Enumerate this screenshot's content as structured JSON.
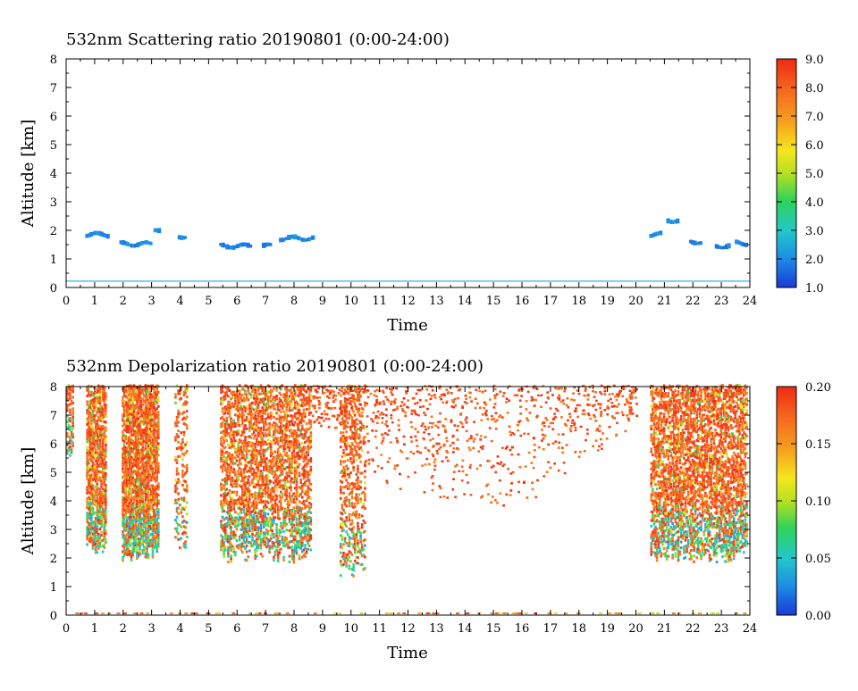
{
  "chart_data": [
    {
      "type": "heatmap",
      "title": "532nm Scattering ratio  20190801 (0:00-24:00)",
      "xlabel": "Time",
      "ylabel": "Altitude [km]",
      "xlim": [
        0,
        24
      ],
      "ylim": [
        0,
        8
      ],
      "x_ticks": [
        "0",
        "1",
        "2",
        "3",
        "4",
        "5",
        "6",
        "7",
        "8",
        "9",
        "10",
        "11",
        "12",
        "13",
        "14",
        "15",
        "16",
        "17",
        "18",
        "19",
        "20",
        "21",
        "22",
        "23",
        "24"
      ],
      "y_ticks": [
        "0",
        "1",
        "2",
        "3",
        "4",
        "5",
        "6",
        "7",
        "8"
      ],
      "colorbar": {
        "range": [
          1.0,
          9.0
        ],
        "ticks": [
          "1.0",
          "2.0",
          "3.0",
          "4.0",
          "5.0",
          "6.0",
          "7.0",
          "8.0",
          "9.0"
        ]
      },
      "features": [
        {
          "t0": 0.7,
          "t1": 1.5,
          "alt": 1.85,
          "value": 1.8
        },
        {
          "t0": 1.9,
          "t1": 3.0,
          "alt": 1.52,
          "value": 1.7
        },
        {
          "t0": 3.1,
          "t1": 3.3,
          "alt": 2.05,
          "value": 1.9
        },
        {
          "t0": 3.95,
          "t1": 4.2,
          "alt": 1.8,
          "value": 1.7
        },
        {
          "t0": 5.4,
          "t1": 6.5,
          "alt": 1.45,
          "value": 1.6
        },
        {
          "t0": 6.9,
          "t1": 7.2,
          "alt": 1.45,
          "value": 1.6
        },
        {
          "t0": 7.5,
          "t1": 8.7,
          "alt": 1.72,
          "value": 1.8
        },
        {
          "t0": 20.5,
          "t1": 20.9,
          "alt": 1.85,
          "value": 1.8
        },
        {
          "t0": 21.1,
          "t1": 21.5,
          "alt": 2.35,
          "value": 1.9
        },
        {
          "t0": 21.9,
          "t1": 22.3,
          "alt": 1.6,
          "value": 1.6
        },
        {
          "t0": 22.8,
          "t1": 23.3,
          "alt": 1.45,
          "value": 1.6
        },
        {
          "t0": 23.5,
          "t1": 23.9,
          "alt": 1.55,
          "value": 1.6
        }
      ],
      "surface_line": {
        "alt": 0.22,
        "value": 2.5
      }
    },
    {
      "type": "heatmap",
      "title": "532nm Depolarization ratio  20190801 (0:00-24:00)",
      "xlabel": "Time",
      "ylabel": "Altitude [km]",
      "xlim": [
        0,
        24
      ],
      "ylim": [
        0,
        8
      ],
      "x_ticks": [
        "0",
        "1",
        "2",
        "3",
        "4",
        "5",
        "6",
        "7",
        "8",
        "9",
        "10",
        "11",
        "12",
        "13",
        "14",
        "15",
        "16",
        "17",
        "18",
        "19",
        "20",
        "21",
        "22",
        "23",
        "24"
      ],
      "y_ticks": [
        "0",
        "1",
        "2",
        "3",
        "4",
        "5",
        "6",
        "7",
        "8"
      ],
      "colorbar": {
        "range": [
          0.0,
          0.2
        ],
        "ticks": [
          "0.00",
          "0.05",
          "0.10",
          "0.15",
          "0.20"
        ]
      },
      "columns": [
        {
          "t0": 0.0,
          "t1": 0.25,
          "bottom": 5.5,
          "density": 0.6
        },
        {
          "t0": 0.7,
          "t1": 1.4,
          "bottom": 2.1,
          "density": 0.75
        },
        {
          "t0": 1.95,
          "t1": 3.2,
          "bottom": 1.8,
          "density": 0.8
        },
        {
          "t0": 3.8,
          "t1": 4.2,
          "bottom": 2.1,
          "density": 0.35
        },
        {
          "t0": 5.4,
          "t1": 8.6,
          "bottom": 1.8,
          "density": 0.55
        },
        {
          "t0": 9.6,
          "t1": 10.5,
          "bottom": 1.3,
          "density": 0.35
        },
        {
          "t0": 20.5,
          "t1": 23.9,
          "bottom": 1.8,
          "density": 0.6
        }
      ],
      "scatter_region": {
        "t0": 8.5,
        "t1": 20.0,
        "bottom_at_center": 3.6,
        "top": 8.0
      }
    }
  ]
}
